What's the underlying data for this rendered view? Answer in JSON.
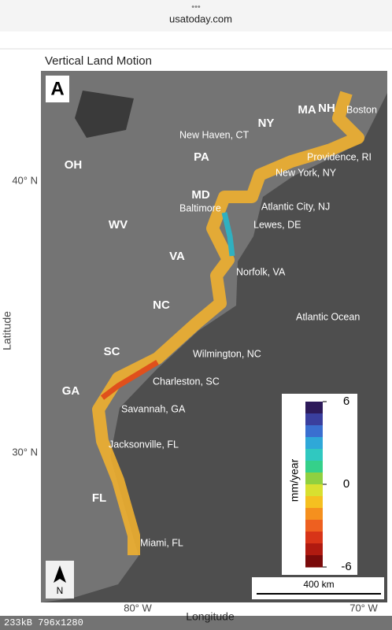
{
  "browser": {
    "menu": "•••",
    "url": "usatoday.com"
  },
  "figure": {
    "title": "Vertical Land Motion",
    "panel_label": "A",
    "states": [
      "NH",
      "MA",
      "NY",
      "PA",
      "OH",
      "MD",
      "WV",
      "VA",
      "NC",
      "SC",
      "GA",
      "FL"
    ],
    "cities": [
      "Boston",
      "New Haven, CT",
      "Providence, RI",
      "New York, NY",
      "Baltimore",
      "Atlantic City, NJ",
      "Lewes, DE",
      "Norfolk, VA",
      "Wilmington, NC",
      "Charleston, SC",
      "Savannah, GA",
      "Jacksonville, FL",
      "Miami, FL"
    ],
    "ocean": "Atlantic Ocean",
    "y_axis_label": "Latitude",
    "x_axis_label": "Longitude",
    "lat_ticks": [
      {
        "value": 40,
        "label": "40° N"
      },
      {
        "value": 30,
        "label": "30° N"
      }
    ],
    "lon_ticks": [
      {
        "value": 80,
        "label": "80° W"
      },
      {
        "value": 70,
        "label": "70° W"
      }
    ],
    "colorbar": {
      "label": "mm/year",
      "lim": [
        -6,
        6
      ],
      "ticks": [
        6,
        0,
        -6
      ],
      "colors": [
        "#2d1a5a",
        "#3a3f9e",
        "#3a6fd0",
        "#2fa8d8",
        "#30c8c0",
        "#35d08a",
        "#8fd040",
        "#d8e030",
        "#f5c020",
        "#f5901e",
        "#ee6020",
        "#d83418",
        "#b01a10",
        "#7a0a0a"
      ]
    },
    "scale_bar": "400 km",
    "north": "N"
  },
  "footer": "233kB 796x1280"
}
